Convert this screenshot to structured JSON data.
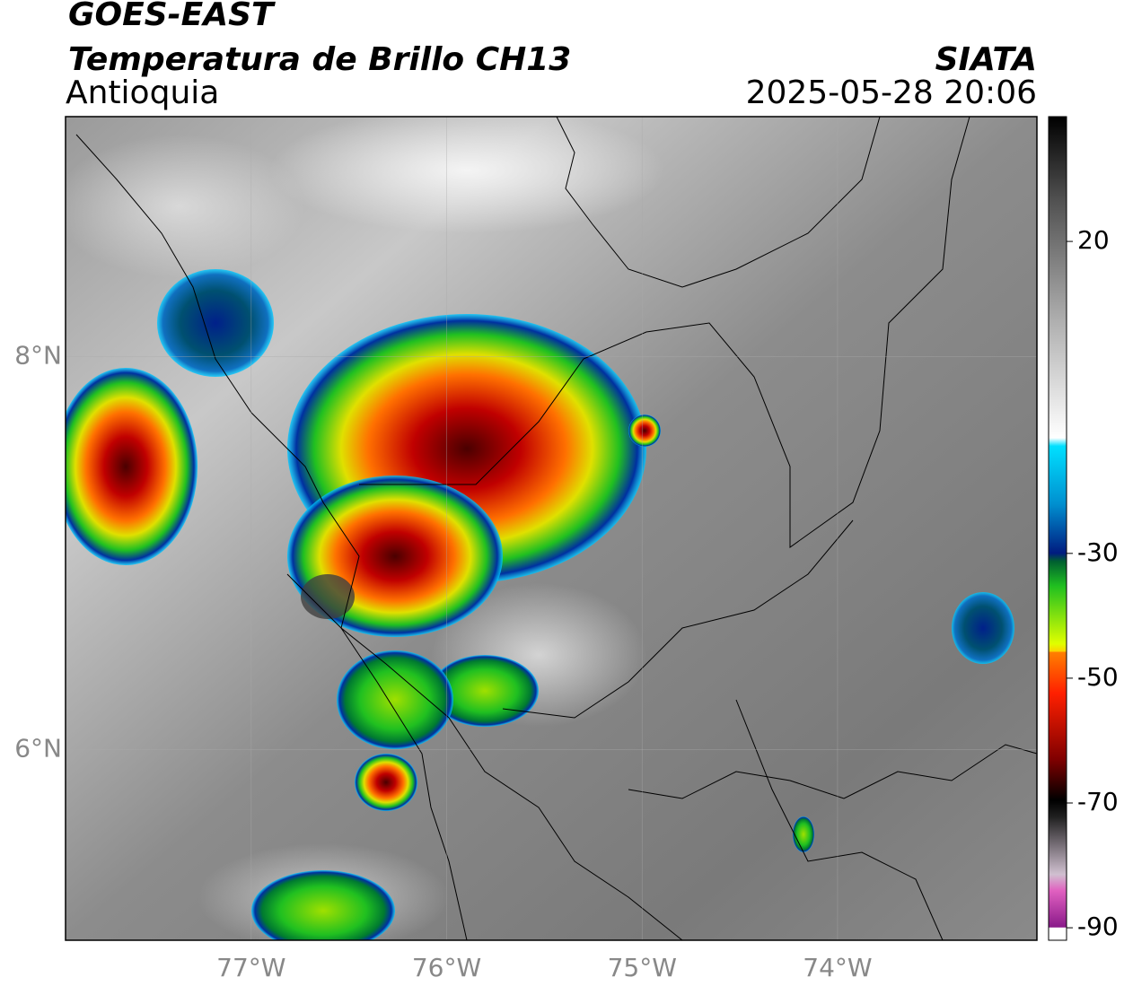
{
  "header": {
    "satellite": "GOES-EAST",
    "product": "Temperatura de Brillo CH13",
    "region": "Antioquia",
    "source": "SIATA",
    "datetime": "2025-05-28 20:06"
  },
  "map": {
    "xlim": [
      -77.95,
      -72.98
    ],
    "ylim": [
      5.03,
      9.22
    ],
    "xticks": [
      {
        "value": -77,
        "label": "77°W"
      },
      {
        "value": -76,
        "label": "76°W"
      },
      {
        "value": -75,
        "label": "75°W"
      },
      {
        "value": -74,
        "label": "74°W"
      }
    ],
    "yticks": [
      {
        "value": 8,
        "label": "8°N"
      },
      {
        "value": 6,
        "label": "6°N"
      }
    ]
  },
  "colorbar": {
    "lim": [
      -92,
      40
    ],
    "ticks": [
      20,
      -30,
      -50,
      -70,
      -90
    ]
  }
}
